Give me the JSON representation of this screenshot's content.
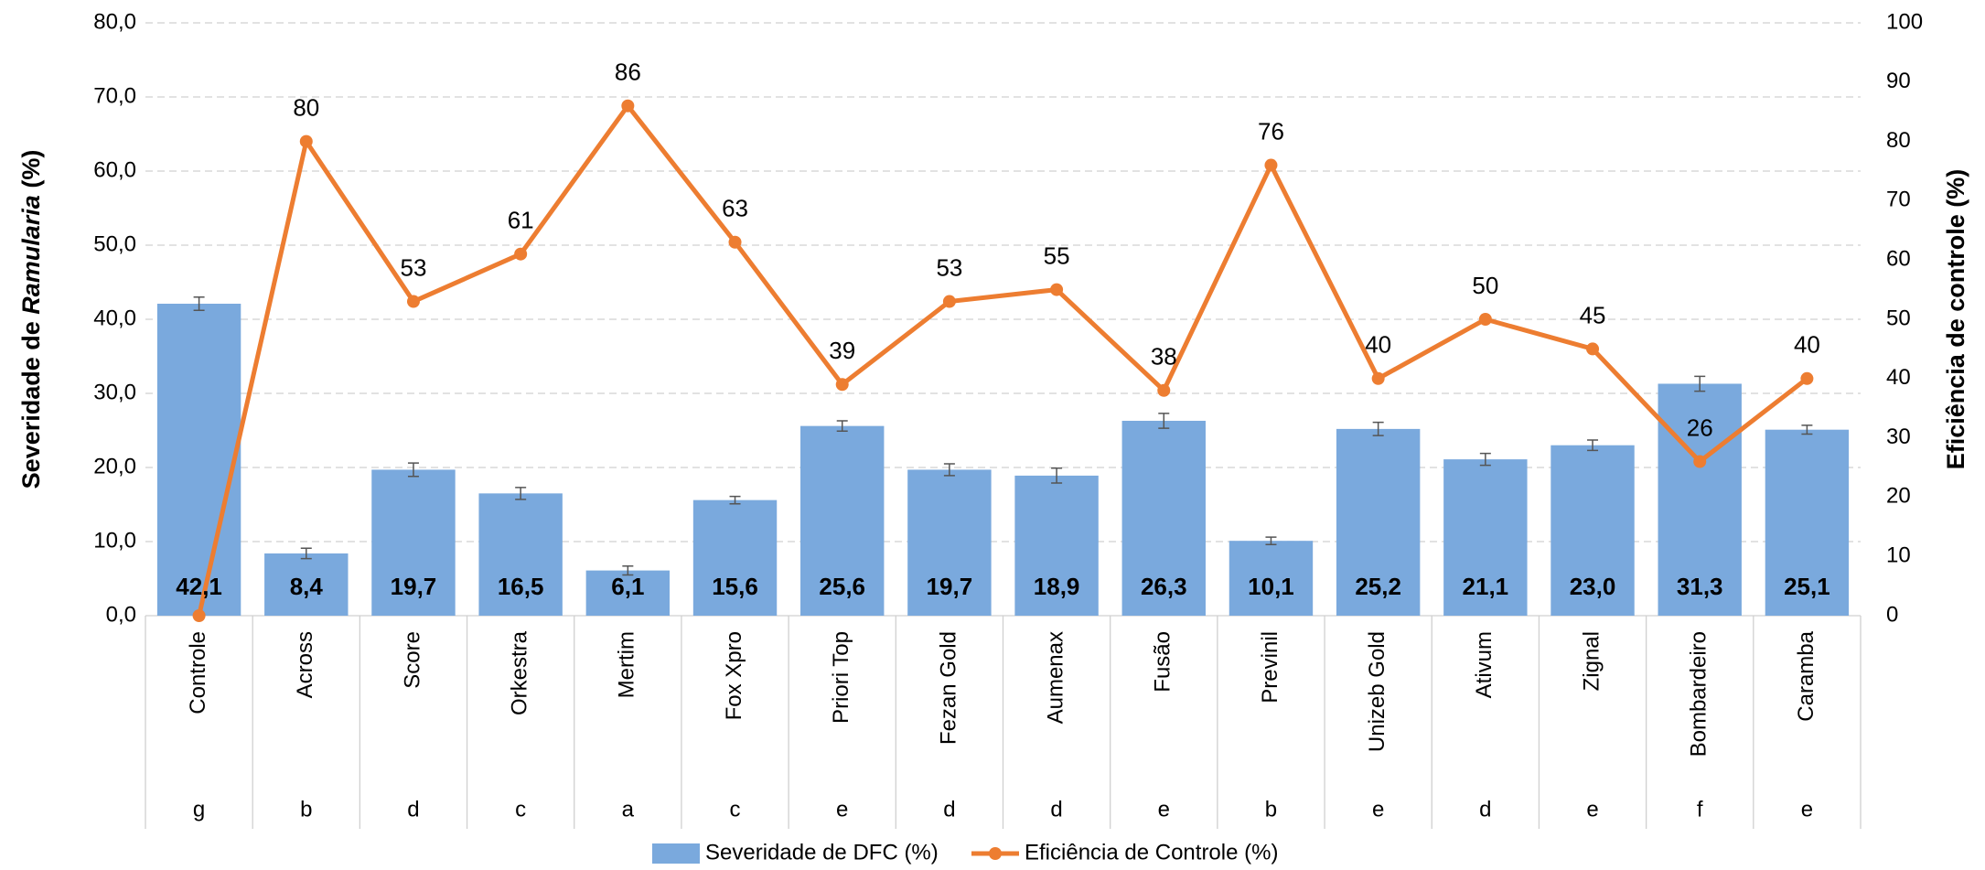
{
  "chart_data": {
    "type": "bar_line",
    "categories": [
      "Controle",
      "Across",
      "Score",
      "Orkestra",
      "Mertim",
      "Fox Xpro",
      "Priori Top",
      "Fezan Gold",
      "Aumenax",
      "Fusão",
      "Previnil",
      "Unizeb Gold",
      "Ativum",
      "Zignal",
      "Bombardeiro",
      "Caramba"
    ],
    "groups": [
      "g",
      "b",
      "d",
      "c",
      "a",
      "c",
      "e",
      "d",
      "d",
      "e",
      "b",
      "e",
      "d",
      "e",
      "f",
      "e"
    ],
    "ylabel_parts": [
      "Severidade de ",
      "Ramularia",
      " (%)"
    ],
    "y2label": "Eficiência de controle (%)",
    "series": [
      {
        "name": "Severidade de DFC (%)",
        "type": "bar",
        "color": "#7aa9dd",
        "values": [
          42.1,
          8.4,
          19.7,
          16.5,
          6.1,
          15.6,
          25.6,
          19.7,
          18.9,
          26.3,
          10.1,
          25.2,
          21.1,
          23.0,
          31.3,
          25.1
        ],
        "value_labels": [
          "42,1",
          "8,4",
          "19,7",
          "16,5",
          "6,1",
          "15,6",
          "25,6",
          "19,7",
          "18,9",
          "26,3",
          "10,1",
          "25,2",
          "21,1",
          "23,0",
          "31,3",
          "25,1"
        ],
        "errors": [
          0.9,
          0.7,
          0.9,
          0.8,
          0.6,
          0.5,
          0.7,
          0.8,
          1.0,
          1.0,
          0.5,
          0.9,
          0.8,
          0.7,
          1.0,
          0.6
        ]
      },
      {
        "name": "Eficiência de Controle (%)",
        "type": "line",
        "axis": "y2",
        "color": "#ed7d31",
        "values": [
          0,
          80,
          53,
          61,
          86,
          63,
          39,
          53,
          55,
          38,
          76,
          40,
          50,
          45,
          26,
          40
        ],
        "value_labels": [
          null,
          "80",
          "53",
          "61",
          "86",
          "63",
          "39",
          "53",
          "55",
          "38",
          "76",
          "40",
          "50",
          "45",
          "26",
          "40"
        ]
      }
    ],
    "ylim": [
      0,
      80
    ],
    "yticks": [
      {
        "value": 0,
        "label": "0,0"
      },
      {
        "value": 10,
        "label": "10,0"
      },
      {
        "value": 20,
        "label": "20,0"
      },
      {
        "value": 30,
        "label": "30,0"
      },
      {
        "value": 40,
        "label": "40,0"
      },
      {
        "value": 50,
        "label": "50,0"
      },
      {
        "value": 60,
        "label": "60,0"
      },
      {
        "value": 70,
        "label": "70,0"
      },
      {
        "value": 80,
        "label": "80,0"
      }
    ],
    "y2lim": [
      0,
      100
    ],
    "y2ticks": [
      0,
      10,
      20,
      30,
      40,
      50,
      60,
      70,
      80,
      90,
      100
    ],
    "grid": true,
    "legend": "bottom"
  }
}
